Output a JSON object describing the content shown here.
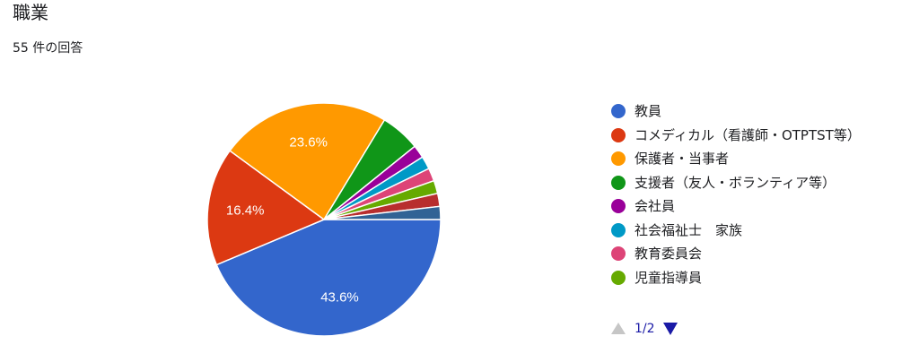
{
  "header": {
    "title": "職業",
    "response_count": "55 件の回答"
  },
  "chart_data": {
    "type": "pie",
    "values_percent": [
      43.6,
      16.4,
      23.6,
      5.5,
      1.8,
      1.8,
      1.8,
      1.8,
      1.8,
      1.8
    ],
    "labels_shown": [
      "43.6%",
      "16.4%",
      "23.6%",
      "",
      "",
      "",
      "",
      "",
      "",
      ""
    ],
    "categories": [
      "教員",
      "コメディカル（看護師・OTPTST等）",
      "保護者・当事者",
      "支援者（友人・ボランティア等）",
      "会社員",
      "社会福祉士　家族",
      "教育委員会",
      "児童指導員",
      "",
      ""
    ],
    "colors": [
      "#3366cc",
      "#dc3912",
      "#ff9900",
      "#109618",
      "#990099",
      "#0099c6",
      "#dd4477",
      "#66aa00",
      "#b82e2e",
      "#316395"
    ]
  },
  "legend": {
    "items": [
      {
        "label": "教員",
        "color": "#3366cc"
      },
      {
        "label": "コメディカル（看護師・OTPTST等）",
        "color": "#dc3912"
      },
      {
        "label": "保護者・当事者",
        "color": "#ff9900"
      },
      {
        "label": "支援者（友人・ボランティア等）",
        "color": "#109618"
      },
      {
        "label": "会社員",
        "color": "#990099"
      },
      {
        "label": "社会福祉士　家族",
        "color": "#0099c6"
      },
      {
        "label": "教育委員会",
        "color": "#dd4477"
      },
      {
        "label": "児童指導員",
        "color": "#66aa00"
      }
    ]
  },
  "pager": {
    "text": "1/2",
    "prev_icon": "triangle-up-icon",
    "next_icon": "triangle-down-icon"
  }
}
